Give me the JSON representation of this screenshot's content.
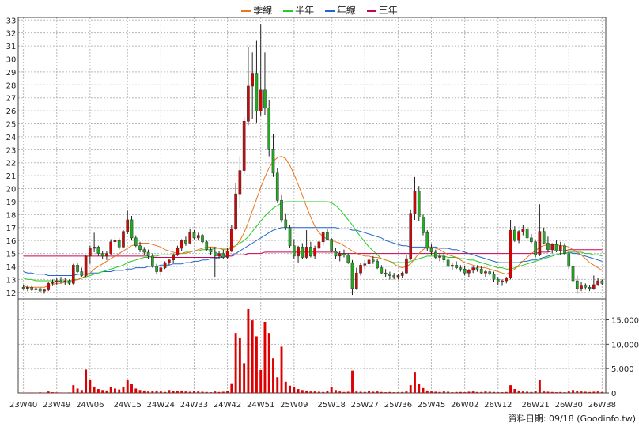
{
  "chart_data": {
    "type": "candlestick",
    "legend": [
      {
        "name": "季線",
        "color": "#e87722"
      },
      {
        "name": "半年",
        "color": "#22cc22"
      },
      {
        "name": "年線",
        "color": "#2266cc"
      },
      {
        "name": "三年",
        "color": "#cc0055"
      }
    ],
    "price_axis": {
      "min": 11.5,
      "max": 33.2,
      "ticks": [
        12,
        13,
        14,
        15,
        16,
        17,
        18,
        19,
        20,
        21,
        22,
        23,
        24,
        25,
        26,
        27,
        28,
        29,
        30,
        31,
        32,
        33
      ]
    },
    "volume_axis": {
      "min": 0,
      "max": 18000,
      "ticks": [
        0,
        5000,
        10000,
        15000
      ],
      "tick_labels": [
        "0",
        "5,000",
        "10,000",
        "15,000"
      ]
    },
    "x_labels": [
      "23W40",
      "23W49",
      "24W06",
      "24W15",
      "24W24",
      "24W33",
      "24W42",
      "24W51",
      "25W09",
      "25W18",
      "25W27",
      "25W36",
      "25W45",
      "26W02",
      "26W12",
      "26W21",
      "26W30",
      "26W38"
    ],
    "footer": "資料日期: 09/18",
    "footer_source": "(Goodinfo.tw)",
    "colors": {
      "up": "#dd0000",
      "down": "#22aa22",
      "volume": "#dd0000"
    },
    "ohlc": [
      [
        12.4,
        12.6,
        12.2,
        12.3
      ],
      [
        12.3,
        12.5,
        12.1,
        12.4
      ],
      [
        12.4,
        12.5,
        12.1,
        12.2
      ],
      [
        12.2,
        12.4,
        12.0,
        12.3
      ],
      [
        12.3,
        12.4,
        12.1,
        12.1
      ],
      [
        12.1,
        12.3,
        11.9,
        12.2
      ],
      [
        12.2,
        12.8,
        12.1,
        12.7
      ],
      [
        12.7,
        13.0,
        12.5,
        12.8
      ],
      [
        12.8,
        13.1,
        12.6,
        12.9
      ],
      [
        12.9,
        13.2,
        12.7,
        12.8
      ],
      [
        12.8,
        13.1,
        12.6,
        12.9
      ],
      [
        12.9,
        13.0,
        12.6,
        12.7
      ],
      [
        12.7,
        14.2,
        12.6,
        14.1
      ],
      [
        14.1,
        14.3,
        13.5,
        13.6
      ],
      [
        13.6,
        13.9,
        13.2,
        13.3
      ],
      [
        13.3,
        14.9,
        13.2,
        14.8
      ],
      [
        14.8,
        15.6,
        14.2,
        15.4
      ],
      [
        15.4,
        16.6,
        15.1,
        15.5
      ],
      [
        15.5,
        15.6,
        14.8,
        15.0
      ],
      [
        15.0,
        15.2,
        14.6,
        14.8
      ],
      [
        14.8,
        15.2,
        14.5,
        15.0
      ],
      [
        15.0,
        16.1,
        14.9,
        15.9
      ],
      [
        15.9,
        16.4,
        15.5,
        16.0
      ],
      [
        16.0,
        16.2,
        15.3,
        15.5
      ],
      [
        15.5,
        16.8,
        15.4,
        16.7
      ],
      [
        16.7,
        18.3,
        16.5,
        17.6
      ],
      [
        17.6,
        17.9,
        16.0,
        16.2
      ],
      [
        16.2,
        16.4,
        15.5,
        15.6
      ],
      [
        15.6,
        15.9,
        15.1,
        15.3
      ],
      [
        15.3,
        15.5,
        14.9,
        15.1
      ],
      [
        15.1,
        15.3,
        14.6,
        14.8
      ],
      [
        14.8,
        15.0,
        13.9,
        14.0
      ],
      [
        14.0,
        14.2,
        13.4,
        13.6
      ],
      [
        13.6,
        14.0,
        13.3,
        13.9
      ],
      [
        13.9,
        14.4,
        13.8,
        14.3
      ],
      [
        14.3,
        14.6,
        14.1,
        14.5
      ],
      [
        14.5,
        15.0,
        14.3,
        14.9
      ],
      [
        14.9,
        15.6,
        14.8,
        15.4
      ],
      [
        15.4,
        16.1,
        15.2,
        16.0
      ],
      [
        16.0,
        16.3,
        15.6,
        15.8
      ],
      [
        15.8,
        16.9,
        15.7,
        16.6
      ],
      [
        16.6,
        16.8,
        16.1,
        16.2
      ],
      [
        16.2,
        16.6,
        16.0,
        16.4
      ],
      [
        16.4,
        16.5,
        15.8,
        15.9
      ],
      [
        15.9,
        16.0,
        15.2,
        15.3
      ],
      [
        15.3,
        15.5,
        14.9,
        15.1
      ],
      [
        15.1,
        15.5,
        13.2,
        14.8
      ],
      [
        14.8,
        15.2,
        14.6,
        15.0
      ],
      [
        15.0,
        15.3,
        14.6,
        14.7
      ],
      [
        14.7,
        15.4,
        14.6,
        15.2
      ],
      [
        15.2,
        17.2,
        15.1,
        16.9
      ],
      [
        16.9,
        20.4,
        16.8,
        19.6
      ],
      [
        19.6,
        22.5,
        18.5,
        21.4
      ],
      [
        21.4,
        25.5,
        21.1,
        25.2
      ],
      [
        25.2,
        30.9,
        24.9,
        27.9
      ],
      [
        27.9,
        30.5,
        25.4,
        28.9
      ],
      [
        28.9,
        31.4,
        25.1,
        26.0
      ],
      [
        26.0,
        32.7,
        25.6,
        27.6
      ],
      [
        27.6,
        30.5,
        25.7,
        26.2
      ],
      [
        26.2,
        26.8,
        22.5,
        23.0
      ],
      [
        23.0,
        24.2,
        20.9,
        21.2
      ],
      [
        21.2,
        21.6,
        18.9,
        19.1
      ],
      [
        19.1,
        19.5,
        17.4,
        17.6
      ],
      [
        17.6,
        18.1,
        16.8,
        17.0
      ],
      [
        17.0,
        17.2,
        15.4,
        15.6
      ],
      [
        15.6,
        16.1,
        14.6,
        14.8
      ],
      [
        14.8,
        15.6,
        14.3,
        15.5
      ],
      [
        15.5,
        15.8,
        14.6,
        14.7
      ],
      [
        14.7,
        16.8,
        14.6,
        15.5
      ],
      [
        15.5,
        15.9,
        14.7,
        14.8
      ],
      [
        14.8,
        15.6,
        14.6,
        15.4
      ],
      [
        15.4,
        16.0,
        15.2,
        15.9
      ],
      [
        15.9,
        16.6,
        15.6,
        16.6
      ],
      [
        16.6,
        16.9,
        16.0,
        16.1
      ],
      [
        16.1,
        16.2,
        15.1,
        15.2
      ],
      [
        15.2,
        15.4,
        14.6,
        14.8
      ],
      [
        14.8,
        15.2,
        14.4,
        15.0
      ],
      [
        15.0,
        15.3,
        14.7,
        14.9
      ],
      [
        14.9,
        15.0,
        14.2,
        14.3
      ],
      [
        14.3,
        14.5,
        11.8,
        12.3
      ],
      [
        12.3,
        13.9,
        12.2,
        13.5
      ],
      [
        13.5,
        14.3,
        13.3,
        14.1
      ],
      [
        14.1,
        14.5,
        13.8,
        14.2
      ],
      [
        14.2,
        14.7,
        14.0,
        14.5
      ],
      [
        14.5,
        14.8,
        14.2,
        14.4
      ],
      [
        14.4,
        14.6,
        13.8,
        13.9
      ],
      [
        13.9,
        14.1,
        13.4,
        13.5
      ],
      [
        13.5,
        13.8,
        13.2,
        13.4
      ],
      [
        13.4,
        13.6,
        13.0,
        13.3
      ],
      [
        13.3,
        13.5,
        13.0,
        13.2
      ],
      [
        13.2,
        13.4,
        13.0,
        13.3
      ],
      [
        13.3,
        13.6,
        13.1,
        13.5
      ],
      [
        13.5,
        14.9,
        13.4,
        14.6
      ],
      [
        14.6,
        18.4,
        14.5,
        18.1
      ],
      [
        18.1,
        20.9,
        17.6,
        19.8
      ],
      [
        19.8,
        20.2,
        17.5,
        17.8
      ],
      [
        17.8,
        18.0,
        16.4,
        16.6
      ],
      [
        16.6,
        16.8,
        15.2,
        15.4
      ],
      [
        15.4,
        15.7,
        14.9,
        15.1
      ],
      [
        15.1,
        15.3,
        14.6,
        14.7
      ],
      [
        14.7,
        15.0,
        14.4,
        14.8
      ],
      [
        14.8,
        15.1,
        14.3,
        14.5
      ],
      [
        14.5,
        14.7,
        13.9,
        14.0
      ],
      [
        14.0,
        14.3,
        13.7,
        14.1
      ],
      [
        14.1,
        14.4,
        13.8,
        13.9
      ],
      [
        13.9,
        14.1,
        13.6,
        13.8
      ],
      [
        13.8,
        14.0,
        13.3,
        13.5
      ],
      [
        13.5,
        13.8,
        13.2,
        13.7
      ],
      [
        13.7,
        14.0,
        13.5,
        13.9
      ],
      [
        13.9,
        14.1,
        13.6,
        13.8
      ],
      [
        13.8,
        14.0,
        13.4,
        13.5
      ],
      [
        13.5,
        13.7,
        13.2,
        13.6
      ],
      [
        13.6,
        13.8,
        13.3,
        13.4
      ],
      [
        13.4,
        13.6,
        12.8,
        13.0
      ],
      [
        13.0,
        13.2,
        12.6,
        12.8
      ],
      [
        12.8,
        13.0,
        12.5,
        12.9
      ],
      [
        12.9,
        13.2,
        12.7,
        13.1
      ],
      [
        13.1,
        17.6,
        13.0,
        16.8
      ],
      [
        16.8,
        17.1,
        15.9,
        16.0
      ],
      [
        16.0,
        16.8,
        15.8,
        16.7
      ],
      [
        16.7,
        17.2,
        16.4,
        16.9
      ],
      [
        16.9,
        17.0,
        16.1,
        16.2
      ],
      [
        16.2,
        16.5,
        15.8,
        15.9
      ],
      [
        15.9,
        16.0,
        14.7,
        14.9
      ],
      [
        14.9,
        18.8,
        14.8,
        16.7
      ],
      [
        16.7,
        17.0,
        15.7,
        15.8
      ],
      [
        15.8,
        16.3,
        15.1,
        15.3
      ],
      [
        15.3,
        15.8,
        15.0,
        15.7
      ],
      [
        15.7,
        16.0,
        15.1,
        15.2
      ],
      [
        15.2,
        15.9,
        14.9,
        15.6
      ],
      [
        15.6,
        15.8,
        14.9,
        15.0
      ],
      [
        15.0,
        15.2,
        13.8,
        14.0
      ],
      [
        14.0,
        14.1,
        12.6,
        12.9
      ],
      [
        12.9,
        13.3,
        11.9,
        12.3
      ],
      [
        12.3,
        12.8,
        12.1,
        12.5
      ],
      [
        12.5,
        12.7,
        12.2,
        12.4
      ],
      [
        12.4,
        12.6,
        12.1,
        12.3
      ],
      [
        12.3,
        13.3,
        12.2,
        12.6
      ],
      [
        12.6,
        13.1,
        12.5,
        12.9
      ],
      [
        12.9,
        13.0,
        12.6,
        12.7
      ]
    ],
    "volume": [
      80,
      60,
      90,
      70,
      120,
      80,
      300,
      150,
      120,
      90,
      80,
      100,
      1600,
      900,
      600,
      4800,
      2600,
      1300,
      800,
      600,
      500,
      1200,
      900,
      700,
      1300,
      2700,
      1800,
      900,
      600,
      500,
      300,
      400,
      500,
      300,
      200,
      600,
      400,
      350,
      500,
      300,
      250,
      400,
      300,
      250,
      200,
      150,
      300,
      200,
      250,
      400,
      2000,
      12300,
      11200,
      6100,
      17200,
      14900,
      11600,
      4700,
      14600,
      12300,
      7100,
      3200,
      9500,
      2300,
      1500,
      1200,
      800,
      600,
      500,
      300,
      300,
      250,
      200,
      400,
      1300,
      600,
      300,
      200,
      250,
      4600,
      300,
      250,
      200,
      350,
      250,
      300,
      200,
      150,
      200,
      150,
      150,
      200,
      300,
      1600,
      4200,
      1800,
      1000,
      500,
      300,
      250,
      200,
      300,
      250,
      150,
      200,
      200,
      150,
      250,
      300,
      200,
      200,
      300,
      250,
      200,
      150,
      150,
      200,
      1600,
      800,
      500,
      300,
      250,
      200,
      400,
      2700,
      300,
      250,
      200,
      150,
      200,
      150,
      300,
      600,
      400,
      300,
      250,
      200,
      250,
      300,
      200
    ],
    "ma_quarter": [
      12.5,
      12.4,
      12.4,
      12.4,
      12.4,
      12.4,
      12.5,
      12.6,
      12.7,
      12.7,
      12.8,
      12.8,
      12.9,
      13.0,
      13.1,
      13.3,
      13.5,
      13.8,
      14.0,
      14.2,
      14.4,
      14.6,
      14.8,
      15.0,
      15.2,
      15.4,
      15.6,
      15.7,
      15.8,
      15.8,
      15.8,
      15.7,
      15.6,
      15.5,
      15.3,
      15.2,
      15.1,
      15.0,
      15.0,
      15.0,
      15.1,
      15.2,
      15.3,
      15.4,
      15.5,
      15.5,
      15.5,
      15.4,
      15.3,
      15.3,
      15.4,
      15.6,
      16.0,
      16.6,
      17.4,
      18.3,
      19.2,
      20.1,
      20.9,
      21.6,
      22.1,
      22.4,
      22.5,
      22.3,
      21.8,
      21.1,
      20.3,
      19.5,
      18.6,
      17.8,
      17.1,
      16.6,
      16.3,
      16.1,
      16.0,
      15.9,
      15.8,
      15.6,
      15.4,
      15.2,
      15.0,
      14.9,
      14.8,
      14.8,
      14.7,
      14.7,
      14.6,
      14.5,
      14.4,
      14.2,
      14.0,
      13.9,
      14.0,
      14.2,
      14.6,
      15.0,
      15.3,
      15.5,
      15.5,
      15.4,
      15.3,
      15.1,
      14.9,
      14.8,
      14.7,
      14.5,
      14.3,
      14.2,
      14.1,
      14.0,
      13.9,
      13.9,
      13.8,
      13.7,
      13.6,
      13.5,
      13.4,
      13.6,
      13.8,
      14.1,
      14.4,
      14.7,
      15.0,
      15.2,
      15.5,
      15.6,
      15.7,
      15.7,
      15.7,
      15.6,
      15.6,
      15.5,
      15.3,
      15.1,
      14.9,
      14.6,
      14.3,
      14.1,
      13.9,
      13.7
    ],
    "ma_half": [
      13.1,
      13.0,
      13.0,
      12.9,
      12.9,
      12.9,
      12.9,
      12.9,
      12.9,
      12.9,
      12.9,
      12.9,
      13.0,
      13.0,
      13.1,
      13.2,
      13.3,
      13.4,
      13.5,
      13.6,
      13.7,
      13.8,
      13.9,
      14.0,
      14.1,
      14.3,
      14.4,
      14.5,
      14.6,
      14.7,
      14.7,
      14.8,
      14.8,
      14.9,
      14.9,
      14.9,
      14.9,
      15.0,
      15.0,
      15.1,
      15.1,
      15.2,
      15.2,
      15.3,
      15.3,
      15.3,
      15.4,
      15.4,
      15.4,
      15.4,
      15.5,
      15.6,
      15.8,
      16.0,
      16.3,
      16.7,
      17.1,
      17.5,
      17.9,
      18.2,
      18.5,
      18.7,
      18.9,
      19.0,
      19.0,
      19.0,
      19.0,
      19.0,
      19.0,
      19.0,
      19.0,
      19.0,
      19.0,
      19.0,
      18.9,
      18.7,
      18.4,
      18.0,
      17.6,
      17.2,
      16.7,
      16.3,
      15.9,
      15.5,
      15.2,
      14.9,
      14.6,
      14.5,
      14.4,
      14.3,
      14.3,
      14.3,
      14.3,
      14.4,
      14.5,
      14.6,
      14.7,
      14.8,
      14.8,
      14.8,
      14.8,
      14.8,
      14.7,
      14.7,
      14.7,
      14.6,
      14.6,
      14.5,
      14.5,
      14.4,
      14.3,
      14.2,
      14.1,
      14.0,
      13.9,
      13.9,
      13.8,
      13.8,
      13.9,
      14.0,
      14.1,
      14.2,
      14.3,
      14.4,
      14.5,
      14.6,
      14.7,
      14.8,
      14.9,
      15.0,
      15.0,
      15.1,
      15.1,
      15.1,
      15.1,
      15.0,
      15.0,
      14.9,
      14.9,
      14.8
    ],
    "ma_year": [
      13.6,
      13.5,
      13.5,
      13.4,
      13.4,
      13.4,
      13.3,
      13.3,
      13.3,
      13.3,
      13.3,
      13.3,
      13.3,
      13.4,
      13.4,
      13.4,
      13.5,
      13.5,
      13.5,
      13.6,
      13.6,
      13.6,
      13.7,
      13.7,
      13.7,
      13.8,
      13.8,
      13.9,
      13.9,
      13.9,
      14.0,
      14.0,
      14.0,
      14.1,
      14.1,
      14.1,
      14.2,
      14.2,
      14.2,
      14.3,
      14.3,
      14.4,
      14.4,
      14.5,
      14.5,
      14.6,
      14.6,
      14.7,
      14.7,
      14.8,
      14.9,
      15.0,
      15.2,
      15.4,
      15.6,
      15.8,
      16.0,
      16.2,
      16.4,
      16.6,
      16.8,
      16.9,
      17.0,
      17.0,
      17.0,
      17.0,
      17.0,
      17.0,
      17.0,
      17.0,
      17.0,
      17.0,
      17.0,
      17.0,
      17.0,
      17.0,
      16.9,
      16.9,
      16.9,
      16.8,
      16.8,
      16.7,
      16.6,
      16.5,
      16.4,
      16.3,
      16.2,
      16.0,
      15.9,
      15.8,
      15.7,
      15.6,
      15.6,
      15.5,
      15.5,
      15.5,
      15.5,
      15.5,
      15.5,
      15.5,
      15.4,
      15.4,
      15.4,
      15.3,
      15.3,
      15.2,
      15.1,
      15.0,
      14.9,
      14.8,
      14.7,
      14.6,
      14.5,
      14.4,
      14.3,
      14.3,
      14.3,
      14.3,
      14.3,
      14.3,
      14.4,
      14.4,
      14.5,
      14.5,
      14.6,
      14.7,
      14.8,
      14.9,
      14.9,
      15.0,
      15.0,
      15.1,
      15.0,
      15.0,
      14.9,
      14.8,
      14.7,
      14.6,
      14.5,
      14.4
    ],
    "ma_3year": [
      14.8,
      14.8,
      14.8,
      14.8,
      14.8,
      14.8,
      14.8,
      14.8,
      14.8,
      14.8,
      14.8,
      14.8,
      14.8,
      14.8,
      14.8,
      14.8,
      14.8,
      14.8,
      14.8,
      14.8,
      14.8,
      14.8,
      14.8,
      14.8,
      14.8,
      14.8,
      14.8,
      14.8,
      14.8,
      14.8,
      14.8,
      14.7,
      14.7,
      14.7,
      14.7,
      14.7,
      14.7,
      14.7,
      14.7,
      14.7,
      14.7,
      14.7,
      14.7,
      14.7,
      14.7,
      14.7,
      14.7,
      14.7,
      14.8,
      14.8,
      14.8,
      14.9,
      14.9,
      14.9,
      15.0,
      15.0,
      15.0,
      15.0,
      15.1,
      15.1,
      15.1,
      15.1,
      15.1,
      15.1,
      15.1,
      15.1,
      15.1,
      15.1,
      15.1,
      15.1,
      15.1,
      15.1,
      15.1,
      15.1,
      15.1,
      15.1,
      15.0,
      15.0,
      15.0,
      15.0,
      15.0,
      15.0,
      15.0,
      15.0,
      15.0,
      15.0,
      15.0,
      15.0,
      15.0,
      15.0,
      15.0,
      15.0,
      15.0,
      15.0,
      15.0,
      15.0,
      15.0,
      15.0,
      15.0,
      15.0,
      15.0,
      15.0,
      15.0,
      15.0,
      15.0,
      15.0,
      15.0,
      15.0,
      15.0,
      15.0,
      15.0,
      15.0,
      15.0,
      15.0,
      15.0,
      15.0,
      15.0,
      15.0,
      15.0,
      15.0,
      15.0,
      15.0,
      15.0,
      15.0,
      15.1,
      15.1,
      15.1,
      15.2,
      15.2,
      15.2,
      15.2,
      15.3,
      15.3,
      15.3,
      15.3,
      15.3,
      15.3,
      15.3,
      15.3,
      15.3
    ]
  }
}
